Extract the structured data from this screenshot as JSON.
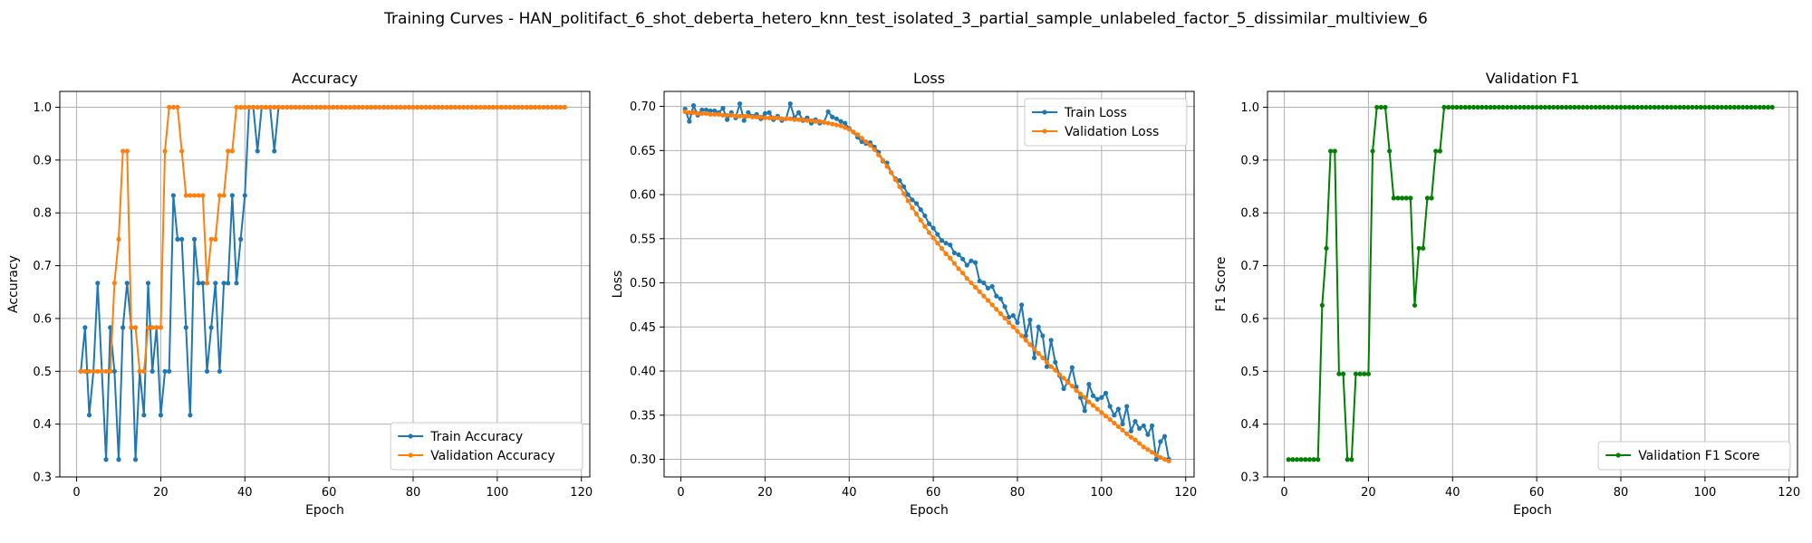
{
  "suptitle": "Training Curves - HAN_politifact_6_shot_deberta_hetero_knn_test_isolated_3_partial_sample_unlabeled_factor_5_dissimilar_multiview_6",
  "colors": {
    "blue": "#1f77b4",
    "orange": "#ff7f0e",
    "green": "#008000",
    "grid": "#b0b0b0"
  },
  "chart_data": [
    {
      "type": "line",
      "title": "Accuracy",
      "xlabel": "Epoch",
      "ylabel": "Accuracy",
      "xlim": [
        -4,
        122
      ],
      "ylim": [
        0.3,
        1.03
      ],
      "xticks": [
        0,
        20,
        40,
        60,
        80,
        100,
        120
      ],
      "yticks": [
        0.3,
        0.4,
        0.5,
        0.6,
        0.7,
        0.8,
        0.9,
        1.0
      ],
      "tick_decimals": 1,
      "grid": true,
      "legend_position": "lower-right",
      "x": [
        1,
        2,
        3,
        4,
        5,
        6,
        7,
        8,
        9,
        10,
        11,
        12,
        13,
        14,
        15,
        16,
        17,
        18,
        19,
        20,
        21,
        22,
        23,
        24,
        25,
        26,
        27,
        28,
        29,
        30,
        31,
        32,
        33,
        34,
        35,
        36,
        37,
        38,
        39,
        40,
        41,
        42,
        43,
        44,
        45,
        46,
        47,
        48,
        49,
        50,
        51,
        52,
        53,
        54,
        55,
        56,
        57,
        58,
        59,
        60,
        61,
        62,
        63,
        64,
        65,
        66,
        67,
        68,
        69,
        70,
        71,
        72,
        73,
        74,
        75,
        76,
        77,
        78,
        79,
        80,
        81,
        82,
        83,
        84,
        85,
        86,
        87,
        88,
        89,
        90,
        91,
        92,
        93,
        94,
        95,
        96,
        97,
        98,
        99,
        100,
        101,
        102,
        103,
        104,
        105,
        106,
        107,
        108,
        109,
        110,
        111,
        112,
        113,
        114,
        115,
        116
      ],
      "series": [
        {
          "name": "Train Accuracy",
          "color": "#1f77b4",
          "values": [
            0.5,
            0.583,
            0.417,
            0.5,
            0.667,
            0.5,
            0.333,
            0.583,
            0.5,
            0.333,
            0.583,
            0.667,
            0.583,
            0.333,
            0.5,
            0.417,
            0.667,
            0.5,
            0.583,
            0.417,
            0.5,
            0.5,
            0.833,
            0.75,
            0.75,
            0.583,
            0.417,
            0.75,
            0.667,
            0.667,
            0.5,
            0.583,
            0.667,
            0.5,
            0.667,
            0.667,
            0.833,
            0.667,
            0.75,
            0.833,
            1.0,
            1.0,
            0.917,
            1.0,
            1.0,
            1.0,
            0.917,
            1.0,
            1.0,
            1.0,
            1.0,
            1.0,
            1.0,
            1.0,
            1.0,
            1.0,
            1.0,
            1.0,
            1.0,
            1.0,
            1.0,
            1.0,
            1.0,
            1.0,
            1.0,
            1.0,
            1.0,
            1.0,
            1.0,
            1.0,
            1.0,
            1.0,
            1.0,
            1.0,
            1.0,
            1.0,
            1.0,
            1.0,
            1.0,
            1.0,
            1.0,
            1.0,
            1.0,
            1.0,
            1.0,
            1.0,
            1.0,
            1.0,
            1.0,
            1.0,
            1.0,
            1.0,
            1.0,
            1.0,
            1.0,
            1.0,
            1.0,
            1.0,
            1.0,
            1.0,
            1.0,
            1.0,
            1.0,
            1.0,
            1.0,
            1.0,
            1.0,
            1.0,
            1.0,
            1.0,
            1.0,
            1.0,
            1.0,
            1.0,
            1.0,
            1.0
          ]
        },
        {
          "name": "Validation Accuracy",
          "color": "#ff7f0e",
          "values": [
            0.5,
            0.5,
            0.5,
            0.5,
            0.5,
            0.5,
            0.5,
            0.5,
            0.667,
            0.75,
            0.917,
            0.917,
            0.583,
            0.583,
            0.5,
            0.5,
            0.583,
            0.583,
            0.583,
            0.583,
            0.917,
            1.0,
            1.0,
            1.0,
            0.917,
            0.833,
            0.833,
            0.833,
            0.833,
            0.833,
            0.667,
            0.75,
            0.75,
            0.833,
            0.833,
            0.917,
            0.917,
            1.0,
            1.0,
            1.0,
            1.0,
            1.0,
            1.0,
            1.0,
            1.0,
            1.0,
            1.0,
            1.0,
            1.0,
            1.0,
            1.0,
            1.0,
            1.0,
            1.0,
            1.0,
            1.0,
            1.0,
            1.0,
            1.0,
            1.0,
            1.0,
            1.0,
            1.0,
            1.0,
            1.0,
            1.0,
            1.0,
            1.0,
            1.0,
            1.0,
            1.0,
            1.0,
            1.0,
            1.0,
            1.0,
            1.0,
            1.0,
            1.0,
            1.0,
            1.0,
            1.0,
            1.0,
            1.0,
            1.0,
            1.0,
            1.0,
            1.0,
            1.0,
            1.0,
            1.0,
            1.0,
            1.0,
            1.0,
            1.0,
            1.0,
            1.0,
            1.0,
            1.0,
            1.0,
            1.0,
            1.0,
            1.0,
            1.0,
            1.0,
            1.0,
            1.0,
            1.0,
            1.0,
            1.0,
            1.0,
            1.0,
            1.0,
            1.0,
            1.0,
            1.0,
            1.0
          ]
        }
      ]
    },
    {
      "type": "line",
      "title": "Loss",
      "xlabel": "Epoch",
      "ylabel": "Loss",
      "xlim": [
        -4,
        122
      ],
      "ylim": [
        0.28,
        0.717
      ],
      "xticks": [
        0,
        20,
        40,
        60,
        80,
        100,
        120
      ],
      "yticks": [
        0.3,
        0.35,
        0.4,
        0.45,
        0.5,
        0.55,
        0.6,
        0.65,
        0.7
      ],
      "tick_decimals": 2,
      "grid": true,
      "legend_position": "upper-right",
      "x": [
        1,
        2,
        3,
        4,
        5,
        6,
        7,
        8,
        9,
        10,
        11,
        12,
        13,
        14,
        15,
        16,
        17,
        18,
        19,
        20,
        21,
        22,
        23,
        24,
        25,
        26,
        27,
        28,
        29,
        30,
        31,
        32,
        33,
        34,
        35,
        36,
        37,
        38,
        39,
        40,
        41,
        42,
        43,
        44,
        45,
        46,
        47,
        48,
        49,
        50,
        51,
        52,
        53,
        54,
        55,
        56,
        57,
        58,
        59,
        60,
        61,
        62,
        63,
        64,
        65,
        66,
        67,
        68,
        69,
        70,
        71,
        72,
        73,
        74,
        75,
        76,
        77,
        78,
        79,
        80,
        81,
        82,
        83,
        84,
        85,
        86,
        87,
        88,
        89,
        90,
        91,
        92,
        93,
        94,
        95,
        96,
        97,
        98,
        99,
        100,
        101,
        102,
        103,
        104,
        105,
        106,
        107,
        108,
        109,
        110,
        111,
        112,
        113,
        114,
        115,
        116
      ],
      "series": [
        {
          "name": "Train Loss",
          "color": "#1f77b4",
          "values": [
            0.697,
            0.683,
            0.701,
            0.69,
            0.696,
            0.696,
            0.695,
            0.695,
            0.693,
            0.698,
            0.685,
            0.693,
            0.687,
            0.703,
            0.684,
            0.693,
            0.689,
            0.691,
            0.686,
            0.692,
            0.693,
            0.685,
            0.689,
            0.684,
            0.686,
            0.703,
            0.687,
            0.693,
            0.684,
            0.687,
            0.681,
            0.685,
            0.681,
            0.682,
            0.694,
            0.688,
            0.686,
            0.683,
            0.681,
            0.675,
            0.671,
            0.665,
            0.66,
            0.658,
            0.659,
            0.654,
            0.648,
            0.638,
            0.636,
            0.625,
            0.618,
            0.616,
            0.609,
            0.6,
            0.594,
            0.59,
            0.583,
            0.576,
            0.567,
            0.562,
            0.555,
            0.548,
            0.545,
            0.543,
            0.534,
            0.532,
            0.527,
            0.52,
            0.525,
            0.523,
            0.502,
            0.5,
            0.494,
            0.496,
            0.485,
            0.482,
            0.473,
            0.461,
            0.463,
            0.455,
            0.475,
            0.44,
            0.458,
            0.415,
            0.45,
            0.44,
            0.405,
            0.435,
            0.41,
            0.395,
            0.38,
            0.388,
            0.404,
            0.382,
            0.37,
            0.355,
            0.385,
            0.372,
            0.368,
            0.37,
            0.375,
            0.36,
            0.35,
            0.357,
            0.34,
            0.36,
            0.332,
            0.343,
            0.335,
            0.338,
            0.328,
            0.338,
            0.3,
            0.32,
            0.326,
            0.3
          ]
        },
        {
          "name": "Validation Loss",
          "color": "#ff7f0e",
          "values": [
            0.694,
            0.693,
            0.693,
            0.692,
            0.692,
            0.692,
            0.691,
            0.691,
            0.691,
            0.69,
            0.69,
            0.69,
            0.689,
            0.689,
            0.689,
            0.689,
            0.688,
            0.688,
            0.688,
            0.687,
            0.687,
            0.687,
            0.687,
            0.686,
            0.686,
            0.686,
            0.685,
            0.685,
            0.685,
            0.684,
            0.684,
            0.683,
            0.683,
            0.682,
            0.681,
            0.68,
            0.679,
            0.678,
            0.676,
            0.674,
            0.671,
            0.668,
            0.664,
            0.66,
            0.656,
            0.651,
            0.645,
            0.639,
            0.632,
            0.625,
            0.617,
            0.609,
            0.601,
            0.593,
            0.585,
            0.578,
            0.571,
            0.564,
            0.557,
            0.551,
            0.545,
            0.539,
            0.533,
            0.528,
            0.522,
            0.516,
            0.511,
            0.505,
            0.5,
            0.495,
            0.49,
            0.485,
            0.48,
            0.475,
            0.47,
            0.465,
            0.46,
            0.455,
            0.45,
            0.445,
            0.44,
            0.435,
            0.43,
            0.425,
            0.42,
            0.415,
            0.41,
            0.405,
            0.401,
            0.396,
            0.392,
            0.387,
            0.383,
            0.378,
            0.374,
            0.37,
            0.365,
            0.361,
            0.357,
            0.353,
            0.349,
            0.345,
            0.341,
            0.337,
            0.333,
            0.329,
            0.325,
            0.322,
            0.318,
            0.314,
            0.311,
            0.308,
            0.305,
            0.302,
            0.3,
            0.298
          ]
        }
      ]
    },
    {
      "type": "line",
      "title": "Validation F1",
      "xlabel": "Epoch",
      "ylabel": "F1 Score",
      "xlim": [
        -4,
        122
      ],
      "ylim": [
        0.3,
        1.03
      ],
      "xticks": [
        0,
        20,
        40,
        60,
        80,
        100,
        120
      ],
      "yticks": [
        0.3,
        0.4,
        0.5,
        0.6,
        0.7,
        0.8,
        0.9,
        1.0
      ],
      "tick_decimals": 1,
      "grid": true,
      "legend_position": "lower-right",
      "x": [
        1,
        2,
        3,
        4,
        5,
        6,
        7,
        8,
        9,
        10,
        11,
        12,
        13,
        14,
        15,
        16,
        17,
        18,
        19,
        20,
        21,
        22,
        23,
        24,
        25,
        26,
        27,
        28,
        29,
        30,
        31,
        32,
        33,
        34,
        35,
        36,
        37,
        38,
        39,
        40,
        41,
        42,
        43,
        44,
        45,
        46,
        47,
        48,
        49,
        50,
        51,
        52,
        53,
        54,
        55,
        56,
        57,
        58,
        59,
        60,
        61,
        62,
        63,
        64,
        65,
        66,
        67,
        68,
        69,
        70,
        71,
        72,
        73,
        74,
        75,
        76,
        77,
        78,
        79,
        80,
        81,
        82,
        83,
        84,
        85,
        86,
        87,
        88,
        89,
        90,
        91,
        92,
        93,
        94,
        95,
        96,
        97,
        98,
        99,
        100,
        101,
        102,
        103,
        104,
        105,
        106,
        107,
        108,
        109,
        110,
        111,
        112,
        113,
        114,
        115,
        116
      ],
      "series": [
        {
          "name": "Validation F1 Score",
          "color": "#008000",
          "values": [
            0.333,
            0.333,
            0.333,
            0.333,
            0.333,
            0.333,
            0.333,
            0.333,
            0.625,
            0.733,
            0.917,
            0.917,
            0.495,
            0.495,
            0.333,
            0.333,
            0.495,
            0.495,
            0.495,
            0.495,
            0.917,
            1.0,
            1.0,
            1.0,
            0.917,
            0.828,
            0.828,
            0.828,
            0.828,
            0.828,
            0.625,
            0.733,
            0.733,
            0.828,
            0.828,
            0.917,
            0.917,
            1.0,
            1.0,
            1.0,
            1.0,
            1.0,
            1.0,
            1.0,
            1.0,
            1.0,
            1.0,
            1.0,
            1.0,
            1.0,
            1.0,
            1.0,
            1.0,
            1.0,
            1.0,
            1.0,
            1.0,
            1.0,
            1.0,
            1.0,
            1.0,
            1.0,
            1.0,
            1.0,
            1.0,
            1.0,
            1.0,
            1.0,
            1.0,
            1.0,
            1.0,
            1.0,
            1.0,
            1.0,
            1.0,
            1.0,
            1.0,
            1.0,
            1.0,
            1.0,
            1.0,
            1.0,
            1.0,
            1.0,
            1.0,
            1.0,
            1.0,
            1.0,
            1.0,
            1.0,
            1.0,
            1.0,
            1.0,
            1.0,
            1.0,
            1.0,
            1.0,
            1.0,
            1.0,
            1.0,
            1.0,
            1.0,
            1.0,
            1.0,
            1.0,
            1.0,
            1.0,
            1.0,
            1.0,
            1.0,
            1.0,
            1.0,
            1.0,
            1.0,
            1.0,
            1.0
          ]
        }
      ]
    }
  ]
}
